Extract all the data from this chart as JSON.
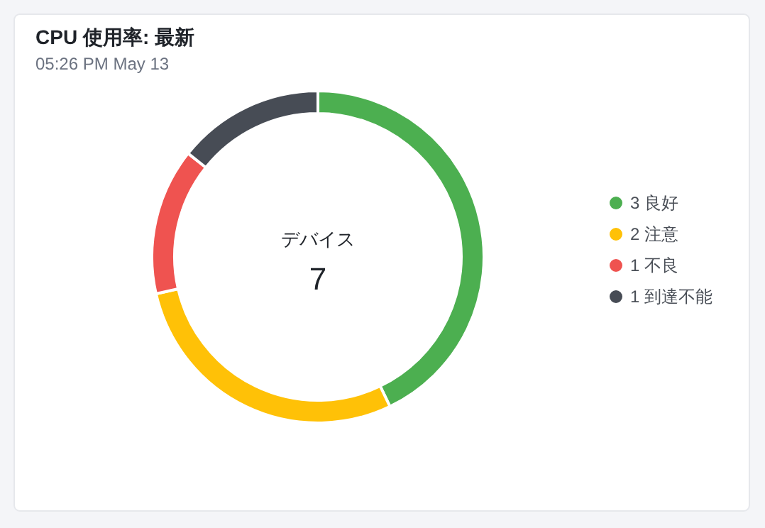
{
  "chart_data": {
    "type": "donut",
    "title": "CPU 使用率: 最新",
    "subtitle": "05:26 PM May 13",
    "categories": [
      "3 良好",
      "2 注意",
      "1 不良",
      "1 到達不能"
    ],
    "values": [
      3,
      2,
      1,
      1
    ],
    "colors": [
      "#4caf50",
      "#ffc107",
      "#ef5350",
      "#474c55"
    ],
    "legend": "right",
    "annotations": [
      "デバイス",
      "7"
    ]
  }
}
